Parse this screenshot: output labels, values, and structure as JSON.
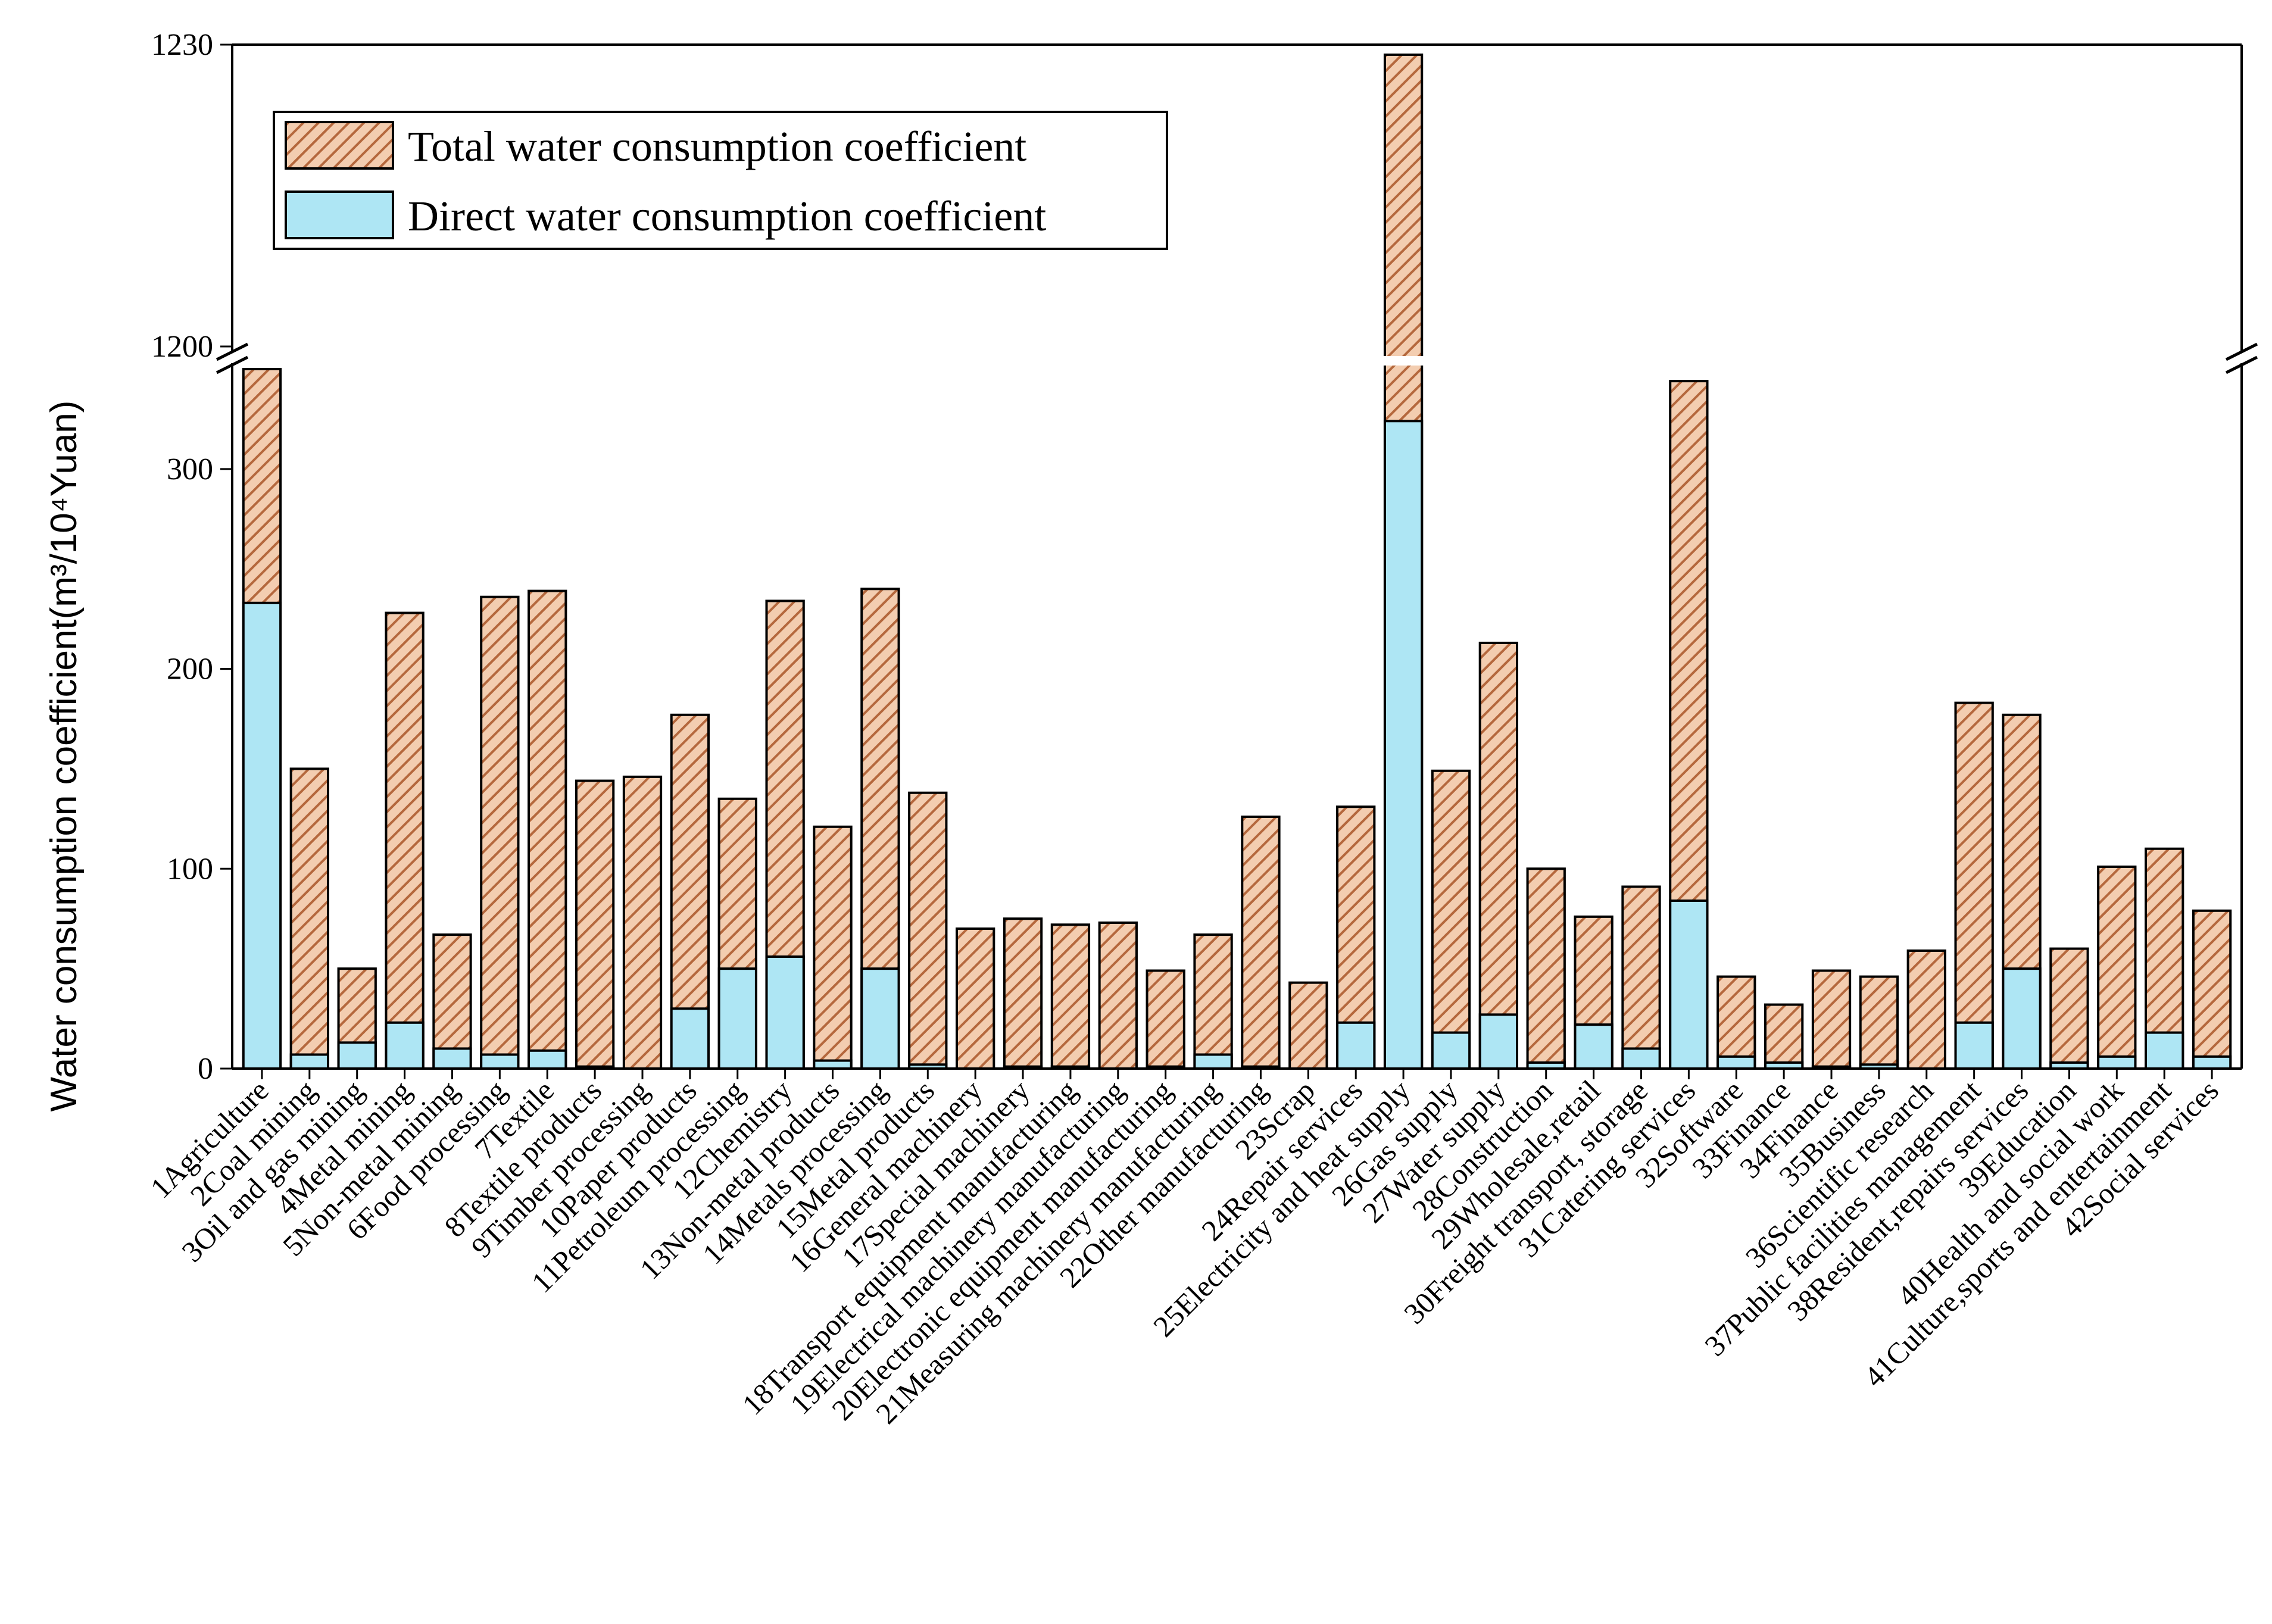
{
  "chart_data": {
    "type": "bar",
    "stacking": "overlay",
    "ylabel": "Water consumption coefficient(m³/10⁴Yuan)",
    "yaxis": {
      "broken": true,
      "lower_segment": [
        0,
        350
      ],
      "upper_segment": [
        1200,
        1230
      ],
      "lower_ticks": [
        0,
        100,
        200,
        300
      ],
      "upper_ticks": [
        1200,
        1230
      ]
    },
    "grid": false,
    "legend": {
      "placement": "top-left",
      "entries": [
        "Total water consumption coefficient",
        "Direct water consumption coefficient"
      ]
    },
    "colors": {
      "total_fill": "#f3cdb0",
      "total_hatch": "#b5683d",
      "direct_fill": "#aee6f4",
      "outline": "#000000"
    },
    "categories": [
      "1Agriculture",
      "2Coal mining",
      "3Oil and gas mining",
      "4Metal mining",
      "5Non-metal mining",
      "6Food processing",
      "7Textile",
      "8Textile products",
      "9Timber processing",
      "10Paper products",
      "11Petroleum processing",
      "12Chemistry",
      "13Non-metal products",
      "14Metals processing",
      "15Metal products",
      "16General machinery",
      "17Special machinery",
      "18Transport equipment manufacturing",
      "19Electrical machinery manufacturing",
      "20Electronic equipment manufacturing",
      "21Measuring machinery manufacturing",
      "22Other manufacturing",
      "23Scrap",
      "24Repair services",
      "25Electricity and heat supply",
      "26Gas supply",
      "27Water supply",
      "28Construction",
      "29Wholesale,retail",
      "30Freight transport, storage",
      "31Catering services",
      "32Software",
      "33Finance",
      "34Finance",
      "35Business",
      "36Scientific research",
      "37Public facilities management",
      "38Resident,repairs services",
      "39Education",
      "40Health and social work",
      "41Culture,sports and entertainment",
      "42Social services"
    ],
    "series": [
      {
        "name": "Total water consumption coefficient",
        "values": [
          350,
          150,
          50,
          228,
          67,
          236,
          239,
          144,
          146,
          177,
          135,
          234,
          121,
          240,
          138,
          70,
          75,
          72,
          73,
          49,
          67,
          126,
          43,
          131,
          1229,
          149,
          213,
          100,
          76,
          91,
          344,
          46,
          32,
          49,
          46,
          59,
          183,
          177,
          60,
          101,
          110,
          79
        ]
      },
      {
        "name": "Direct water consumption coefficient",
        "values": [
          233,
          7,
          13,
          23,
          10,
          7,
          9,
          1,
          0,
          30,
          50,
          56,
          4,
          50,
          2,
          0,
          1,
          1,
          0,
          1,
          7,
          1,
          0,
          23,
          324,
          18,
          27,
          3,
          22,
          10,
          84,
          6,
          3,
          1,
          2,
          0,
          23,
          50,
          3,
          6,
          18,
          6
        ]
      }
    ]
  }
}
